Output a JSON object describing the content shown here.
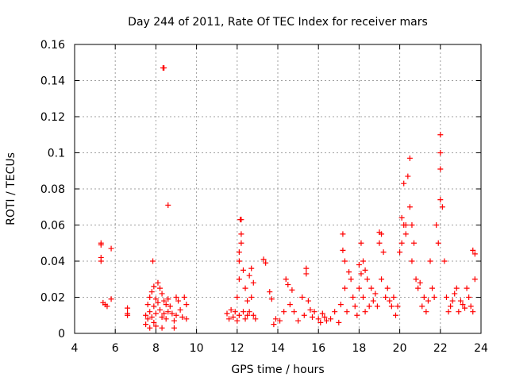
{
  "chart_data": {
    "type": "scatter",
    "title": "Day 244 of 2011, Rate Of TEC Index for receiver mars",
    "xlabel": "GPS time / hours",
    "ylabel": "ROTI / TECUs",
    "xlim": [
      4,
      24
    ],
    "ylim": [
      0,
      0.16
    ],
    "xticks": [
      4,
      6,
      8,
      10,
      12,
      14,
      16,
      18,
      20,
      22,
      24
    ],
    "yticks": [
      0,
      0.02,
      0.04,
      0.06,
      0.08,
      0.1,
      0.12,
      0.14,
      0.16
    ],
    "xtick_labels": [
      "4",
      "6",
      "8",
      "10",
      "12",
      "14",
      "16",
      "18",
      "20",
      "22",
      "24"
    ],
    "ytick_labels": [
      "0",
      "0.02",
      "0.04",
      "0.06",
      "0.08",
      "0.1",
      "0.12",
      "0.14",
      "0.16"
    ],
    "grid": true,
    "marker": "+",
    "marker_color": "#ff0000",
    "series": [
      {
        "x": [
          5.3,
          5.3,
          5.3,
          5.3,
          5.4,
          5.5,
          5.6,
          5.8,
          5.8,
          6.6,
          6.6,
          6.6,
          7.5,
          7.5,
          7.6,
          7.6,
          7.7,
          7.7,
          7.7,
          7.8,
          7.8,
          7.9,
          7.9,
          7.9,
          8.0,
          8.0,
          8.0,
          8.1,
          8.1,
          8.2,
          8.2,
          8.3,
          8.3,
          8.3,
          8.4,
          8.4,
          8.5,
          8.5,
          8.6,
          8.6,
          8.7,
          8.8,
          8.9,
          8.9,
          9.0,
          9.0,
          9.1,
          9.2,
          9.3,
          9.4,
          9.5,
          9.5,
          8.35,
          8.4,
          8.6,
          7.85,
          11.5,
          11.6,
          11.7,
          11.8,
          11.9,
          12.0,
          12.0,
          12.1,
          12.1,
          12.1,
          12.2,
          12.2,
          12.3,
          12.3,
          12.4,
          12.4,
          12.5,
          12.5,
          12.6,
          12.6,
          12.7,
          12.7,
          12.8,
          12.8,
          12.9,
          12.1,
          12.15,
          12.2,
          13.3,
          13.4,
          13.6,
          13.7,
          13.8,
          13.9,
          14.1,
          14.3,
          14.4,
          14.5,
          14.6,
          14.7,
          14.8,
          15.0,
          15.2,
          15.3,
          15.4,
          15.4,
          15.5,
          15.6,
          15.7,
          15.8,
          16.0,
          16.1,
          16.2,
          16.3,
          16.4,
          16.6,
          16.8,
          17.0,
          17.1,
          17.2,
          17.2,
          17.3,
          17.3,
          17.4,
          17.5,
          17.6,
          17.7,
          17.8,
          17.9,
          18.0,
          18.0,
          18.1,
          18.1,
          18.2,
          18.2,
          18.3,
          18.3,
          18.4,
          18.5,
          18.6,
          18.7,
          18.8,
          18.9,
          19.0,
          19.0,
          19.1,
          19.1,
          19.2,
          19.3,
          19.4,
          19.5,
          19.6,
          19.7,
          19.8,
          19.9,
          20.0,
          20.1,
          20.1,
          20.2,
          20.2,
          20.3,
          20.3,
          20.4,
          20.5,
          20.5,
          20.6,
          20.6,
          20.7,
          20.8,
          20.9,
          21.0,
          21.1,
          21.2,
          21.3,
          21.4,
          21.5,
          21.6,
          21.7,
          21.8,
          21.9,
          22.0,
          22.0,
          22.0,
          22.0,
          22.1,
          22.2,
          22.3,
          22.4,
          22.5,
          22.6,
          22.7,
          22.8,
          22.9,
          23.0,
          23.1,
          23.2,
          23.3,
          23.4,
          23.5,
          23.6,
          23.6,
          23.7,
          23.7
        ],
        "y": [
          0.05,
          0.049,
          0.042,
          0.04,
          0.017,
          0.016,
          0.015,
          0.047,
          0.019,
          0.014,
          0.011,
          0.01,
          0.01,
          0.005,
          0.016,
          0.008,
          0.02,
          0.012,
          0.003,
          0.023,
          0.009,
          0.026,
          0.015,
          0.006,
          0.019,
          0.011,
          0.004,
          0.028,
          0.017,
          0.025,
          0.013,
          0.022,
          0.009,
          0.003,
          0.018,
          0.011,
          0.016,
          0.008,
          0.019,
          0.012,
          0.015,
          0.011,
          0.007,
          0.003,
          0.02,
          0.01,
          0.018,
          0.013,
          0.009,
          0.02,
          0.016,
          0.008,
          0.147,
          0.147,
          0.071,
          0.04,
          0.011,
          0.008,
          0.013,
          0.009,
          0.012,
          0.02,
          0.007,
          0.03,
          0.045,
          0.01,
          0.063,
          0.05,
          0.035,
          0.012,
          0.025,
          0.008,
          0.018,
          0.01,
          0.032,
          0.012,
          0.036,
          0.02,
          0.028,
          0.01,
          0.008,
          0.04,
          0.063,
          0.055,
          0.041,
          0.039,
          0.023,
          0.019,
          0.005,
          0.008,
          0.007,
          0.012,
          0.03,
          0.027,
          0.016,
          0.024,
          0.012,
          0.007,
          0.02,
          0.01,
          0.036,
          0.033,
          0.018,
          0.013,
          0.009,
          0.012,
          0.008,
          0.006,
          0.011,
          0.009,
          0.007,
          0.008,
          0.012,
          0.006,
          0.016,
          0.055,
          0.046,
          0.04,
          0.025,
          0.012,
          0.034,
          0.03,
          0.02,
          0.015,
          0.01,
          0.038,
          0.025,
          0.05,
          0.033,
          0.04,
          0.02,
          0.035,
          0.012,
          0.03,
          0.015,
          0.025,
          0.018,
          0.022,
          0.015,
          0.056,
          0.05,
          0.055,
          0.03,
          0.045,
          0.02,
          0.025,
          0.018,
          0.015,
          0.02,
          0.01,
          0.015,
          0.045,
          0.064,
          0.05,
          0.083,
          0.06,
          0.06,
          0.055,
          0.087,
          0.097,
          0.07,
          0.04,
          0.06,
          0.05,
          0.03,
          0.025,
          0.028,
          0.015,
          0.02,
          0.012,
          0.018,
          0.04,
          0.025,
          0.02,
          0.06,
          0.05,
          0.11,
          0.1,
          0.091,
          0.074,
          0.07,
          0.04,
          0.02,
          0.012,
          0.015,
          0.018,
          0.022,
          0.025,
          0.012,
          0.018,
          0.016,
          0.014,
          0.025,
          0.02,
          0.015,
          0.012,
          0.046,
          0.044,
          0.03
        ]
      }
    ]
  }
}
